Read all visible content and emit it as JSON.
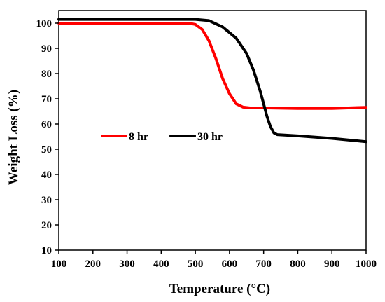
{
  "chart_data": {
    "type": "line",
    "xlabel": "Temperature (°C)",
    "ylabel": "Weight Loss (%)",
    "xlim": [
      100,
      1000
    ],
    "ylim": [
      10,
      105
    ],
    "xticks": [
      100,
      200,
      300,
      400,
      500,
      600,
      700,
      800,
      900,
      1000
    ],
    "yticks": [
      10,
      20,
      30,
      40,
      50,
      60,
      70,
      80,
      90,
      100
    ],
    "grid": false,
    "legend": "inside center-left, horizontal",
    "series": [
      {
        "name": "8 hr",
        "color": "#ff0000",
        "x": [
          100,
          200,
          300,
          400,
          480,
          500,
          520,
          540,
          560,
          580,
          600,
          620,
          640,
          660,
          700,
          800,
          900,
          1000
        ],
        "y": [
          100,
          99.8,
          99.8,
          100,
          100,
          99.5,
          97.5,
          93,
          86,
          78,
          72,
          68,
          66.7,
          66.4,
          66.4,
          66.2,
          66.2,
          66.6
        ]
      },
      {
        "name": "30 hr",
        "color": "#000000",
        "x": [
          100,
          200,
          300,
          400,
          500,
          540,
          580,
          620,
          650,
          670,
          690,
          700,
          710,
          720,
          730,
          740,
          800,
          900,
          1000
        ],
        "y": [
          101.5,
          101.5,
          101.5,
          101.5,
          101.5,
          101,
          98.5,
          94,
          88,
          81.5,
          73,
          68,
          63,
          59,
          56.5,
          55.8,
          55.3,
          54.3,
          53
        ]
      }
    ]
  }
}
